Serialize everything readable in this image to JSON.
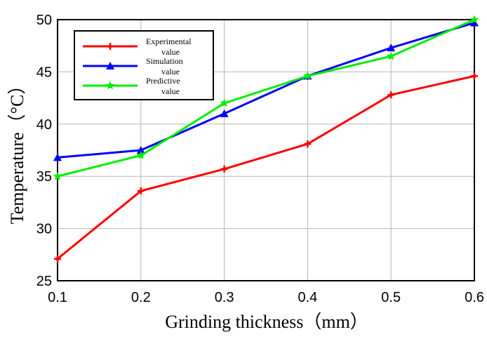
{
  "chart_data": {
    "type": "line",
    "xlabel": "Grinding thickness（mm）",
    "ylabel": "Temperature（°C）",
    "x": [
      0.1,
      0.2,
      0.3,
      0.4,
      0.5,
      0.6
    ],
    "x_tick_labels": [
      "0.1",
      "0.2",
      "0.3",
      "0.4",
      "0.5",
      "0.6"
    ],
    "y_tick_labels": [
      "25",
      "30",
      "35",
      "40",
      "45",
      "50"
    ],
    "xlim": [
      0.1,
      0.6
    ],
    "ylim": [
      25,
      50
    ],
    "grid": true,
    "legend_position": "top-left",
    "series": [
      {
        "name_line1": "Experimental",
        "name_line2": "value",
        "name": "Experimental value",
        "color": "#ff0000",
        "marker": "plus",
        "values": [
          27.1,
          33.6,
          35.7,
          38.1,
          42.8,
          44.6
        ]
      },
      {
        "name_line1": "Simulation",
        "name_line2": "value",
        "name": "Simulation value",
        "color": "#0000ff",
        "marker": "triangle",
        "values": [
          36.8,
          37.5,
          41.0,
          44.6,
          47.3,
          49.7
        ]
      },
      {
        "name_line1": "Predictive",
        "name_line2": "value",
        "name": "Predictive value",
        "color": "#00ee00",
        "marker": "star",
        "values": [
          35.0,
          37.0,
          42.0,
          44.6,
          46.5,
          50.0
        ]
      }
    ]
  }
}
